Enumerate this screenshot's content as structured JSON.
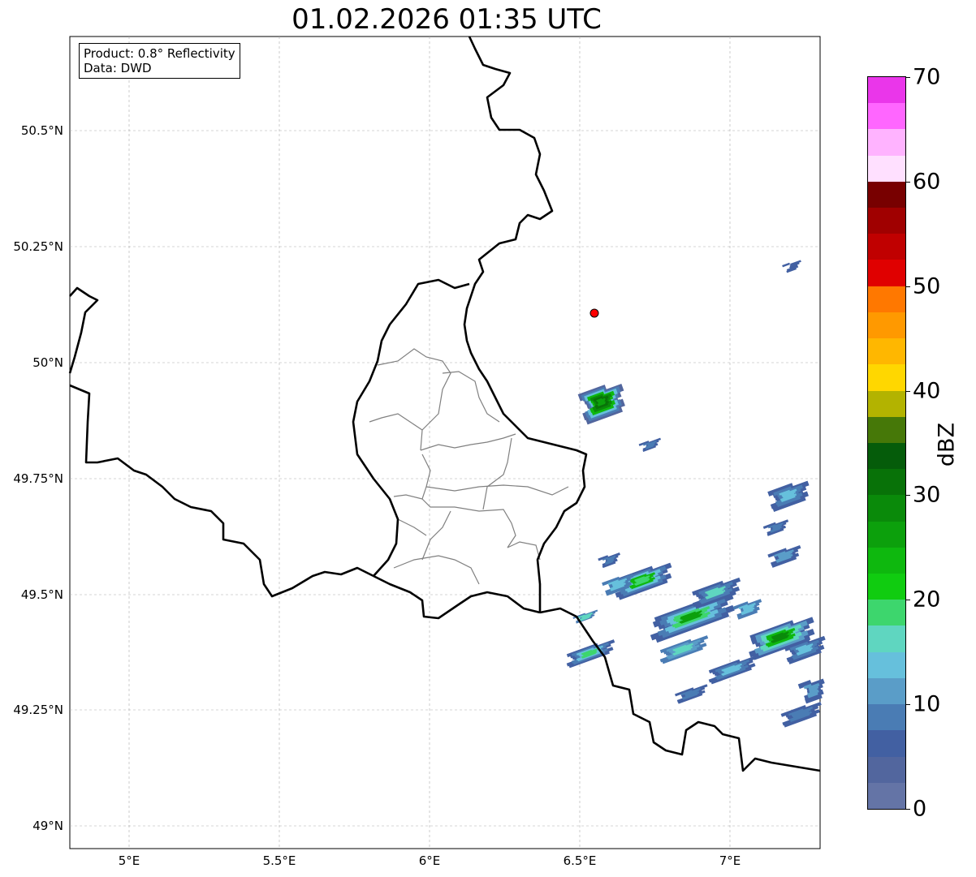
{
  "title": "01.02.2026 01:35 UTC",
  "info": {
    "product": "Product: 0.8° Reflectivity",
    "data": "Data: DWD"
  },
  "axes": {
    "lat_labels": [
      "50.5°N",
      "50.25°N",
      "50°N",
      "49.75°N",
      "49.5°N",
      "49.25°N",
      "49°N"
    ],
    "lon_labels": [
      "5°E",
      "5.5°E",
      "6°E",
      "6.5°E",
      "7°E"
    ],
    "lon_range": [
      4.8,
      7.3
    ],
    "lat_range": [
      48.95,
      50.7
    ]
  },
  "colorbar": {
    "unit": "dBZ",
    "range": [
      0,
      70
    ],
    "step": 2.5,
    "tick_labels": [
      "0",
      "10",
      "20",
      "30",
      "40",
      "50",
      "60",
      "70"
    ],
    "colors": [
      "#6474a6",
      "#52669e",
      "#4260a2",
      "#4a7cb4",
      "#5a9dc8",
      "#66c0dc",
      "#5fd6c0",
      "#3dd66d",
      "#10cc10",
      "#0eb80e",
      "#0ca00c",
      "#0a8a0a",
      "#087208",
      "#055c0a",
      "#467808",
      "#b3b300",
      "#ffd700",
      "#ffb700",
      "#ff9900",
      "#ff7800",
      "#e00000",
      "#c00000",
      "#a00000",
      "#780000",
      "#ffe0ff",
      "#ffb3ff",
      "#ff66ff",
      "#ea36ea"
    ]
  },
  "marker": {
    "color": "#ff0000",
    "lon": 6.55,
    "lat": 50.11
  }
}
